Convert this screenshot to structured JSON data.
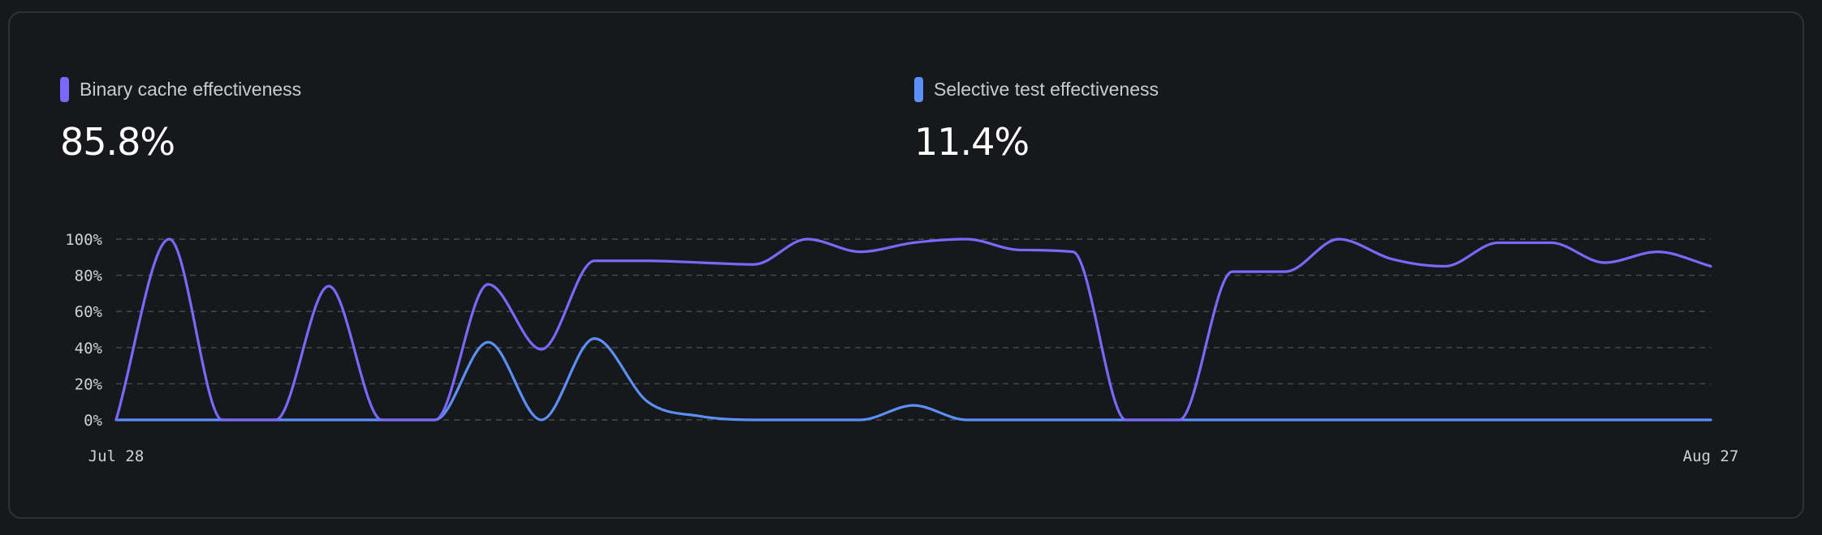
{
  "metrics": [
    {
      "label": "Binary cache effectiveness",
      "value": "85.8%",
      "color": "#7a68ff"
    },
    {
      "label": "Selective test effectiveness",
      "value": "11.4%",
      "color": "#5b8ff9"
    }
  ],
  "chart_data": {
    "type": "line",
    "title": "",
    "xlabel": "",
    "ylabel": "",
    "ylim": [
      0,
      100
    ],
    "y_ticks": [
      0,
      20,
      40,
      60,
      80,
      100
    ],
    "y_tick_suffix": "%",
    "x_range": [
      0,
      30
    ],
    "x_tick_labels": [
      {
        "x": 0,
        "label": "Jul 28"
      },
      {
        "x": 30,
        "label": "Aug 27"
      }
    ],
    "grid": true,
    "series": [
      {
        "name": "Binary cache effectiveness",
        "color": "#7a68ff",
        "values": [
          0,
          100,
          0,
          0,
          74,
          0,
          0,
          75,
          39,
          88,
          88,
          87,
          86,
          100,
          93,
          98,
          100,
          94,
          93,
          0,
          0,
          82,
          82,
          100,
          89,
          85,
          98,
          98,
          87,
          93,
          85
        ]
      },
      {
        "name": "Selective test effectiveness",
        "color": "#5b8ff9",
        "values": [
          0,
          0,
          0,
          0,
          0,
          0,
          0,
          43,
          0,
          45,
          10,
          2,
          0,
          0,
          0,
          8,
          0,
          0,
          0,
          0,
          0,
          0,
          0,
          0,
          0,
          0,
          0,
          0,
          0,
          0,
          0
        ]
      }
    ]
  }
}
